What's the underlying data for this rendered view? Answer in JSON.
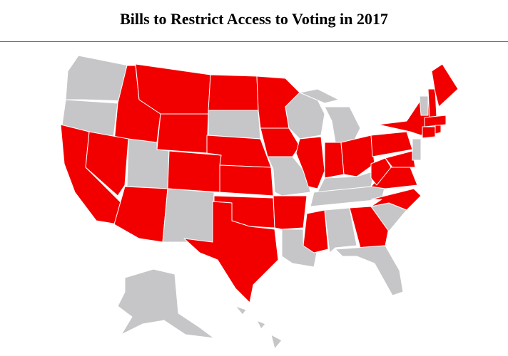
{
  "header": {
    "title": "Bills to Restrict Access to Voting in 2017"
  },
  "map": {
    "highlight_color": "#f20000",
    "other_color": "#c6c6c8"
  }
}
